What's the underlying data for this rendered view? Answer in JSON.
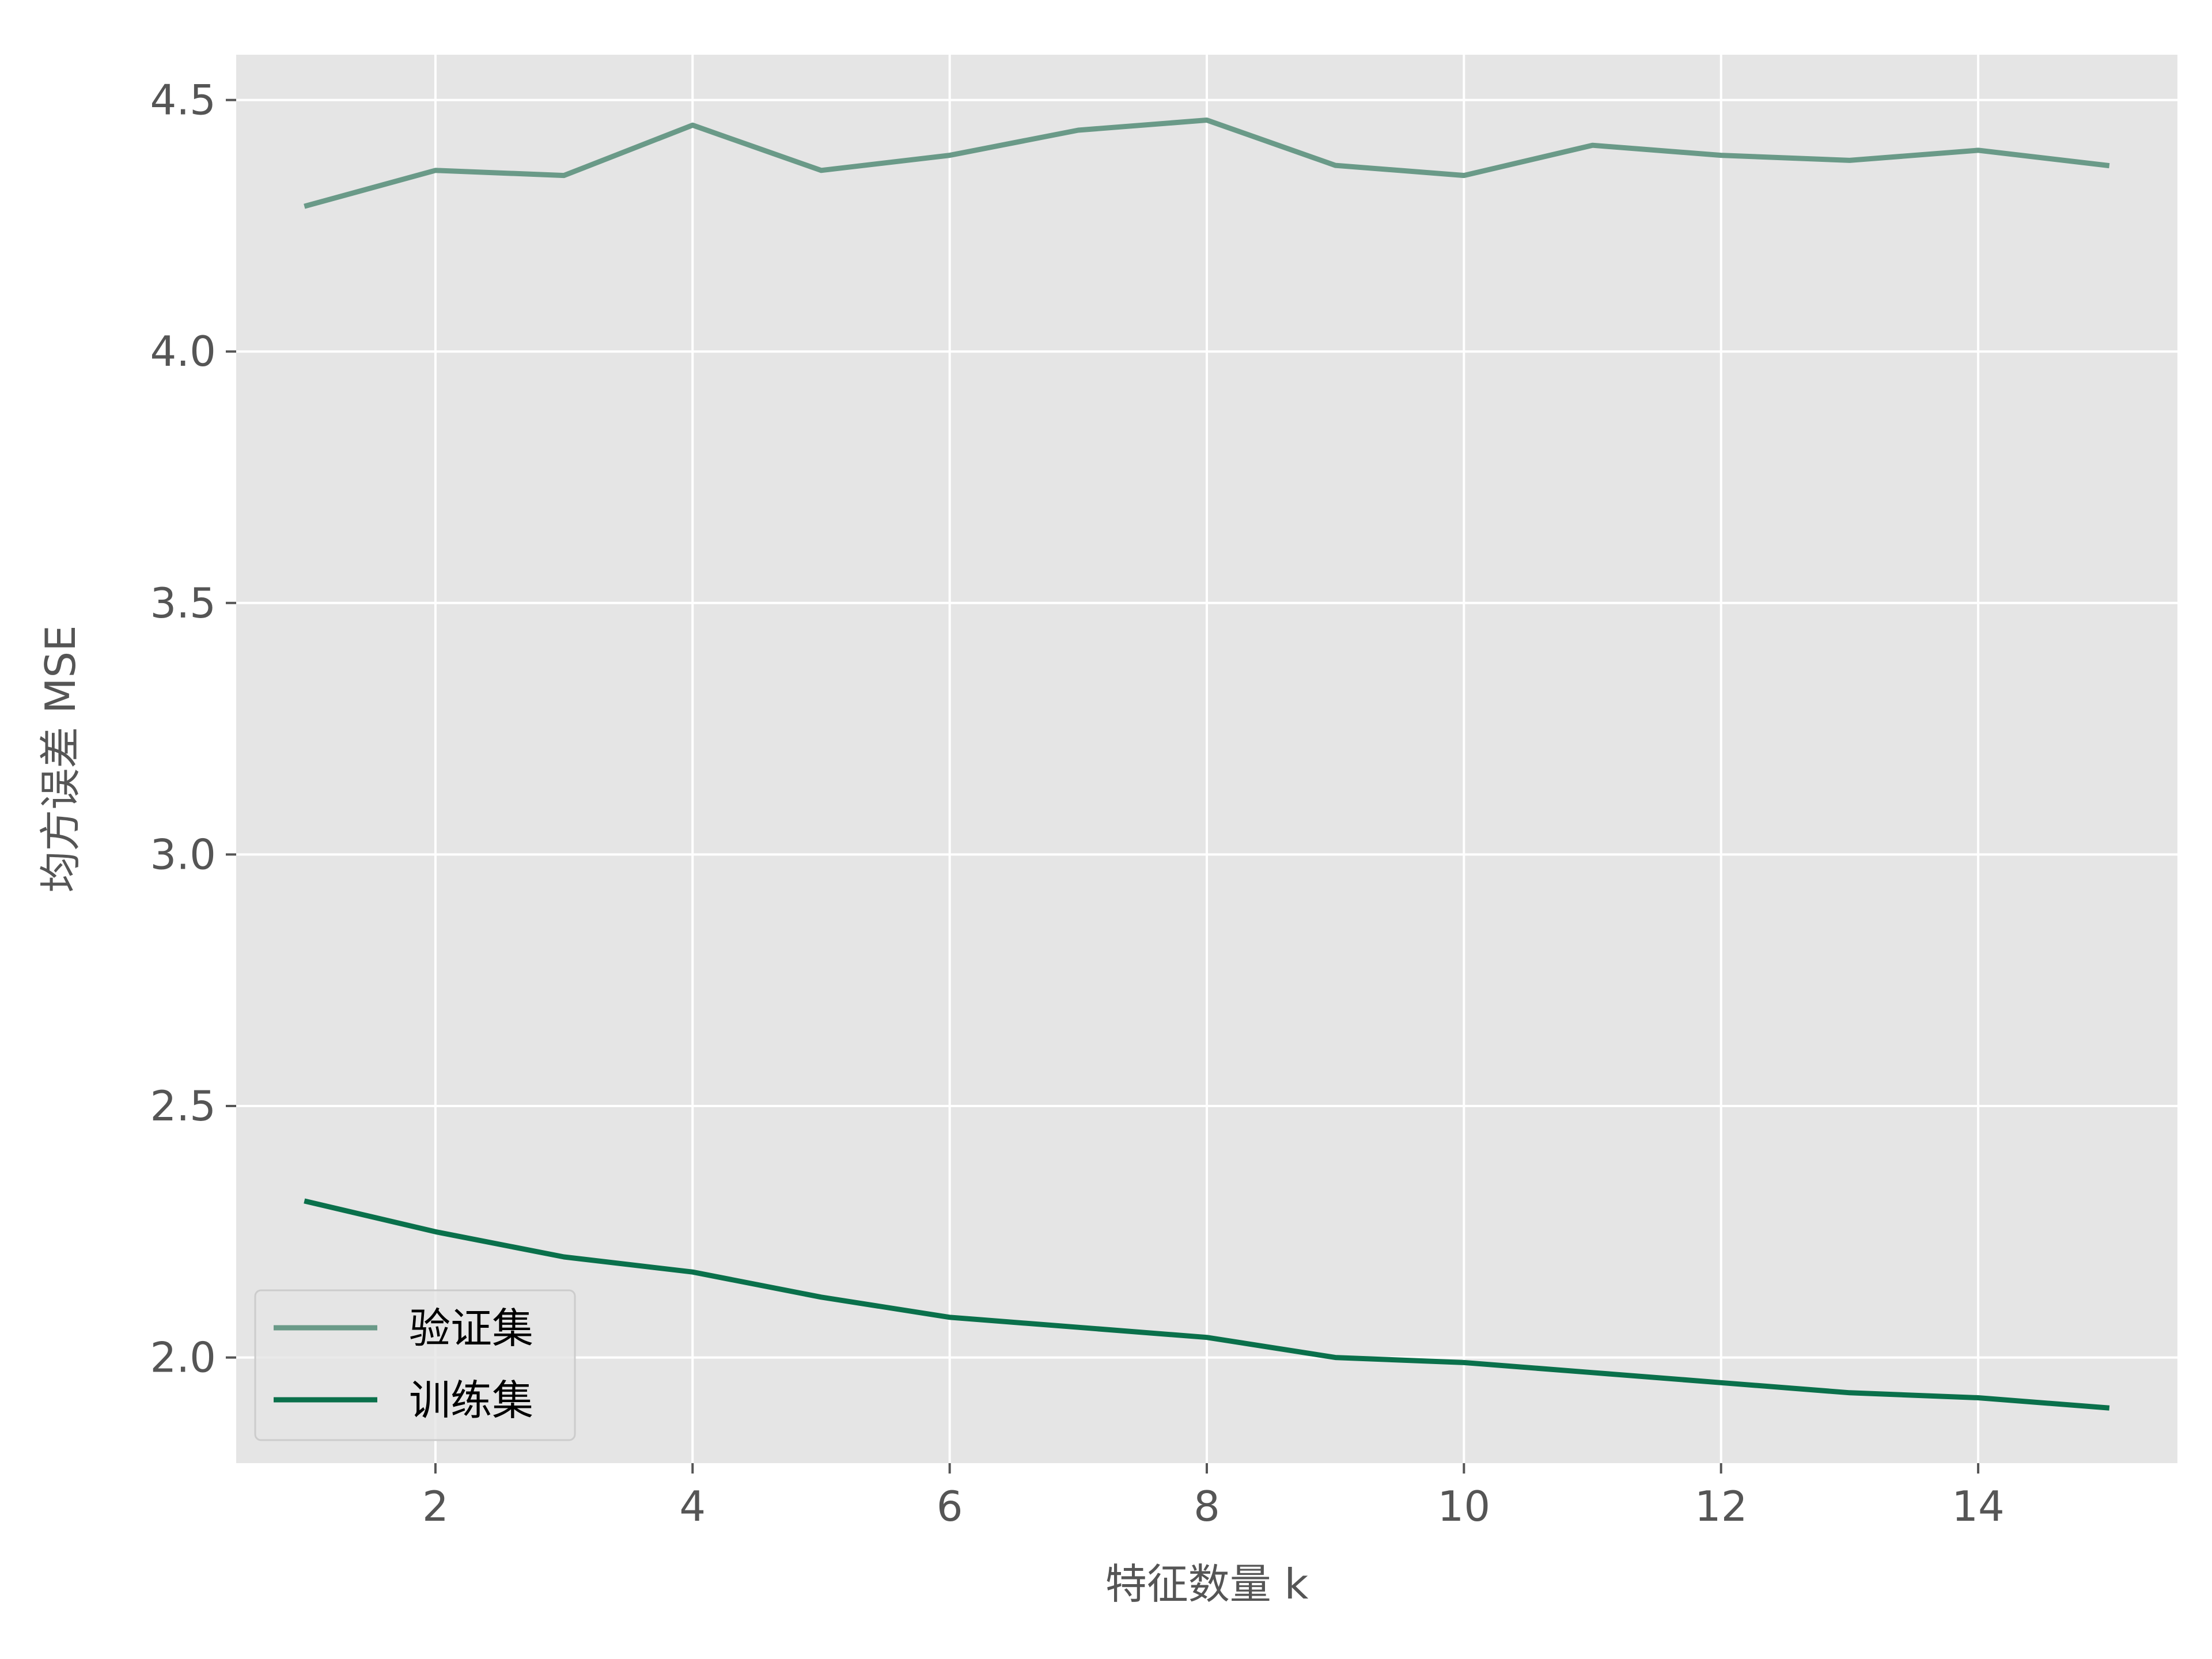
{
  "colors": {
    "figure_bg": "#ffffff",
    "plot_bg": "#e5e5e5",
    "grid": "#ffffff",
    "tick_text": "#555555",
    "validation_line": "#6a9a88",
    "train_line": "#0a704b"
  },
  "chart_data": {
    "type": "line",
    "style": "ggplot",
    "xlabel": "特征数量 k",
    "ylabel": "均方误差 MSE",
    "xlim": [
      0.45,
      15.55
    ],
    "ylim": [
      1.79,
      4.59
    ],
    "xticks": [
      2,
      4,
      6,
      8,
      10,
      12,
      14
    ],
    "yticks": [
      2.0,
      2.5,
      3.0,
      3.5,
      4.0,
      4.5
    ],
    "ytick_labels": [
      "2.0",
      "2.5",
      "3.0",
      "3.5",
      "4.0",
      "4.5"
    ],
    "grid": true,
    "legend_position": "lower-left",
    "x": [
      1,
      2,
      3,
      4,
      5,
      6,
      7,
      8,
      9,
      10,
      11,
      12,
      13,
      14,
      15
    ],
    "series": [
      {
        "name": "验证集",
        "color": "#6a9a88",
        "values": [
          4.29,
          4.36,
          4.35,
          4.45,
          4.36,
          4.39,
          4.44,
          4.46,
          4.37,
          4.35,
          4.41,
          4.39,
          4.38,
          4.4,
          4.37
        ]
      },
      {
        "name": "训练集",
        "color": "#0a704b",
        "values": [
          2.31,
          2.25,
          2.2,
          2.17,
          2.12,
          2.08,
          2.06,
          2.04,
          2.0,
          1.99,
          1.97,
          1.95,
          1.93,
          1.92,
          1.9
        ]
      }
    ]
  }
}
